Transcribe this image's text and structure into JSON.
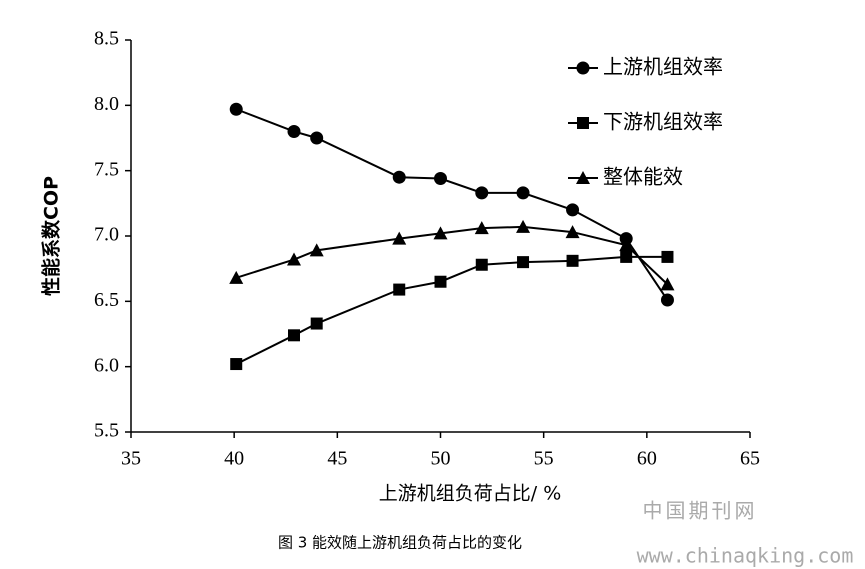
{
  "chart_data": {
    "type": "line",
    "x_label": "上游机组负荷占比/ %",
    "y_label": "性能系数COP",
    "x": [
      40.1,
      42.9,
      44,
      48,
      50,
      52,
      54,
      56.4,
      59,
      61
    ],
    "series": [
      {
        "name": "上游机组效率",
        "color": "#000000",
        "marker": "circle",
        "values": [
          7.97,
          7.8,
          7.75,
          7.45,
          7.44,
          7.33,
          7.33,
          7.2,
          6.98,
          6.51
        ]
      },
      {
        "name": "下游机组效率",
        "color": "#000000",
        "marker": "square",
        "values": [
          6.02,
          6.24,
          6.33,
          6.59,
          6.65,
          6.78,
          6.8,
          6.81,
          6.84,
          6.84
        ]
      },
      {
        "name": "整体能效",
        "color": "#000000",
        "marker": "triangle",
        "values": [
          6.68,
          6.82,
          6.89,
          6.98,
          7.02,
          7.06,
          7.07,
          7.03,
          6.93,
          6.63
        ]
      }
    ],
    "xlim": [
      35,
      65
    ],
    "xticks": [
      35,
      40,
      45,
      50,
      55,
      60,
      65
    ],
    "ylim": [
      5.5,
      8.5
    ],
    "yticks": [
      5.5,
      {
        "value": 6,
        "label": "6.0"
      },
      6.5,
      {
        "value": 7,
        "label": "7.0"
      },
      7.5,
      {
        "value": 8,
        "label": "8.0"
      },
      8.5
    ],
    "grid": false,
    "legend": "upper right"
  },
  "caption": "图 3 能效随上游机组负荷占比的变化",
  "watermark": [
    "中国期刊网",
    "www.chinaqking.com"
  ]
}
